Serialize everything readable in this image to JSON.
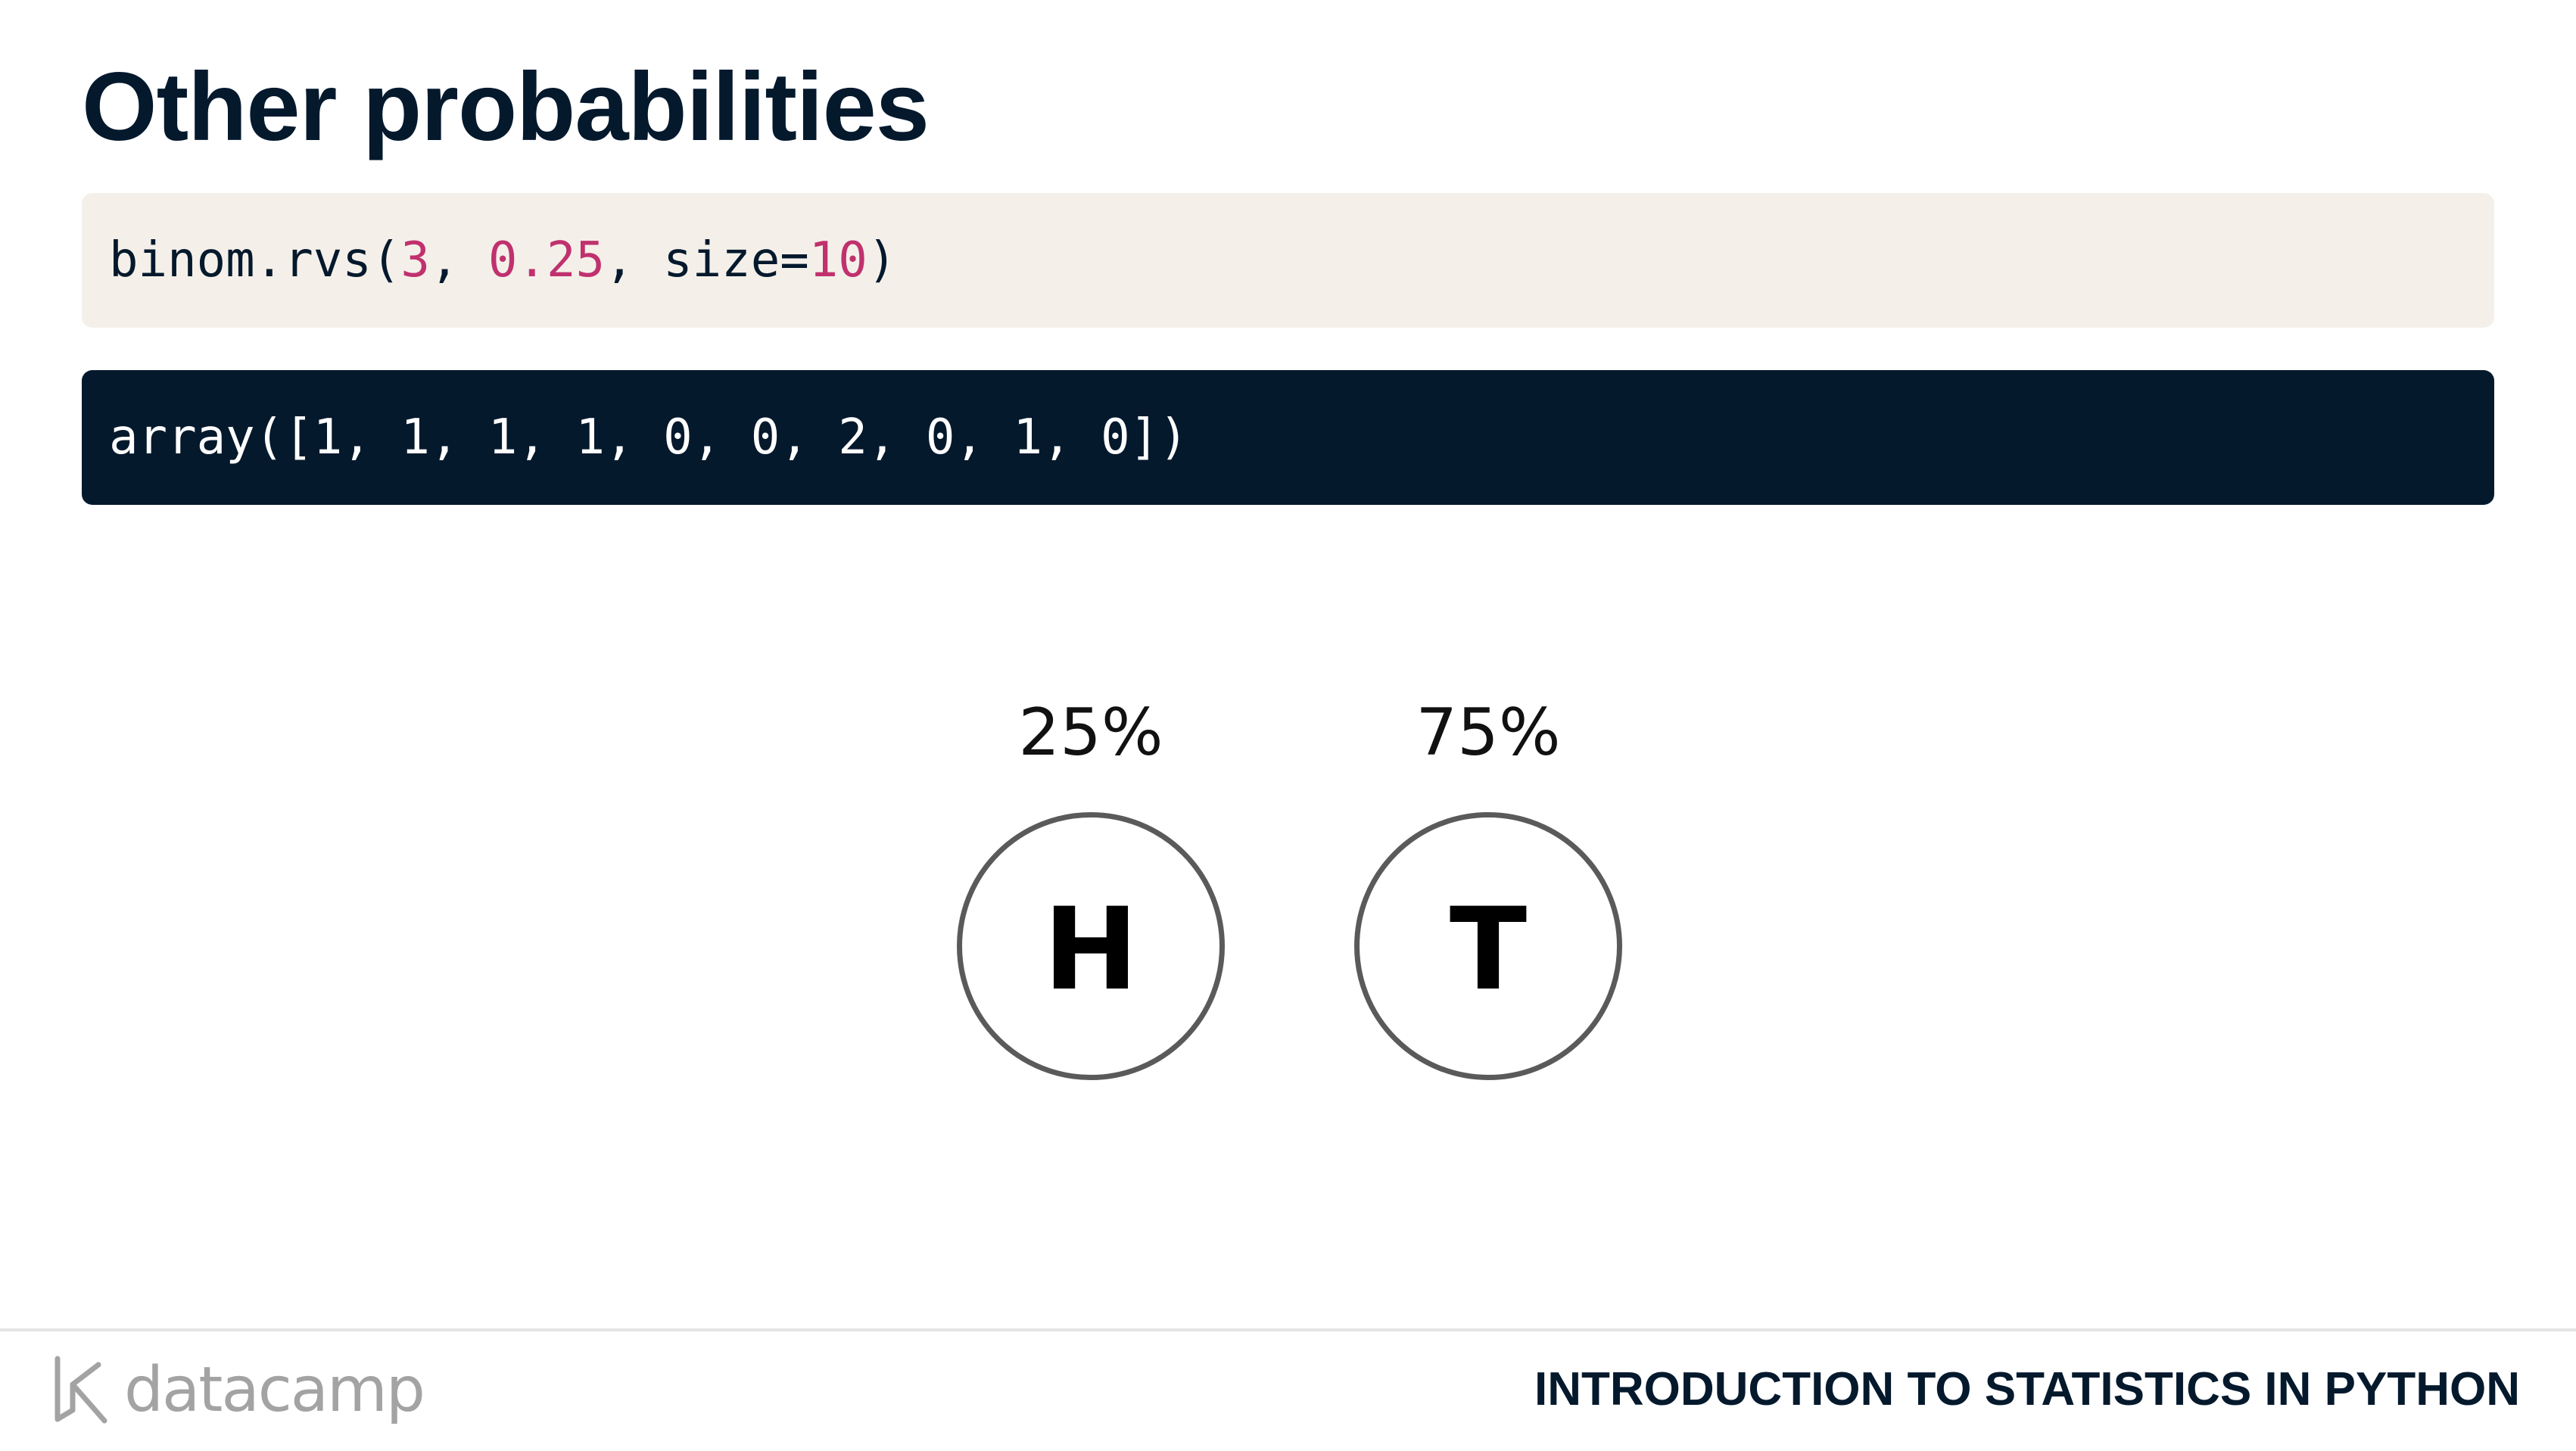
{
  "slide": {
    "title": "Other probabilities"
  },
  "code_input": {
    "fn": "binom.rvs(",
    "arg1": "3",
    "sep1": ", ",
    "arg2": "0.25",
    "sep2": ", size=",
    "arg3": "10",
    "close": ")"
  },
  "code_output": {
    "text": "array([1, 1, 1, 1, 0, 0, 2, 0, 1, 0])"
  },
  "coins": [
    {
      "percent": "25%",
      "face": "H"
    },
    {
      "percent": "75%",
      "face": "T"
    }
  ],
  "footer": {
    "brand": "datacamp",
    "course": "INTRODUCTION TO STATISTICS IN PYTHON"
  },
  "colors": {
    "title": "#05192d",
    "code_input_bg": "#f4f0e9",
    "code_output_bg": "#05192d",
    "number_literal": "#c0316e",
    "brand_gray": "#a3a3a3"
  }
}
